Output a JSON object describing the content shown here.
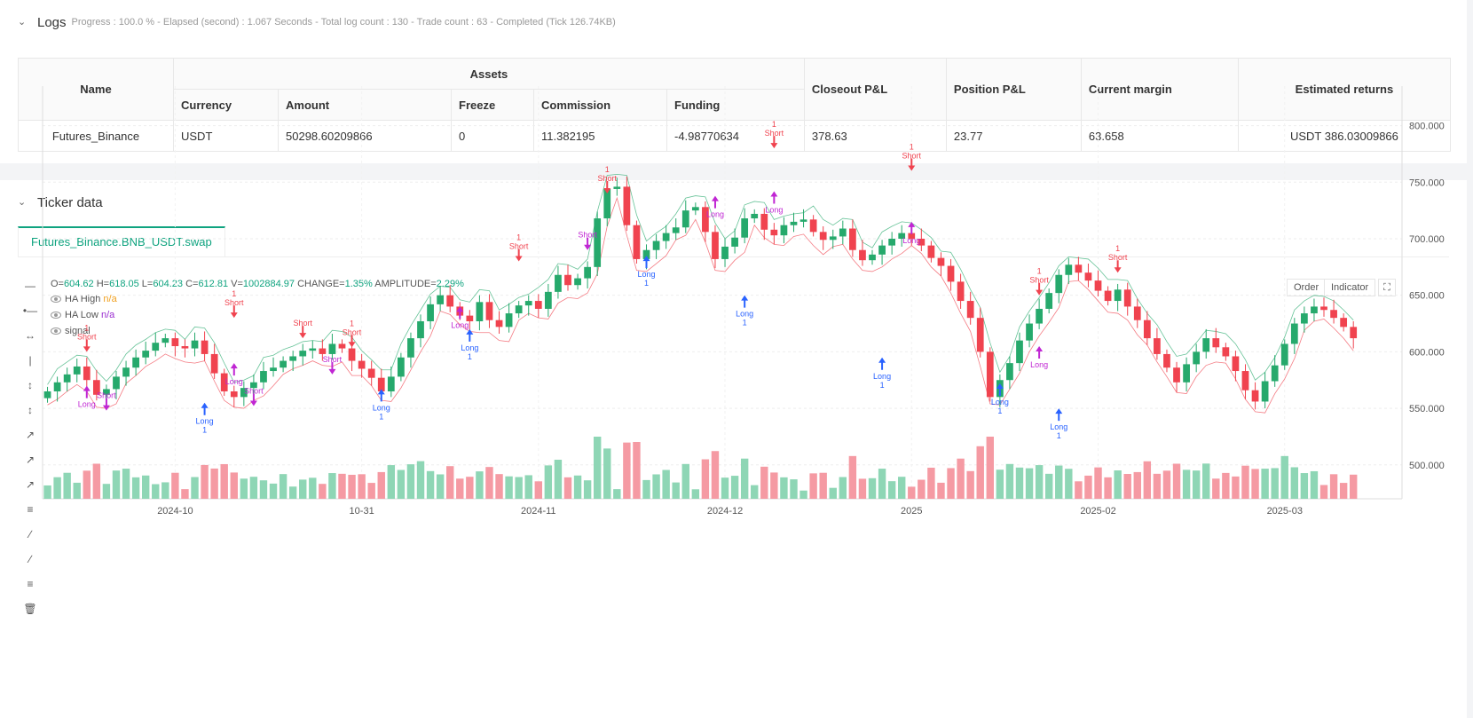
{
  "logs": {
    "title": "Logs",
    "meta": "Progress : 100.0 % - Elapsed (second) : 1.067   Seconds - Total log count : 130 - Trade count : 63 - Completed (Tick 126.74KB)",
    "table": {
      "name_header": "Name",
      "assets_header": "Assets",
      "sub_headers": [
        "Currency",
        "Amount",
        "Freeze",
        "Commission",
        "Funding"
      ],
      "right_headers": [
        "Closeout P&L",
        "Position P&L",
        "Current margin",
        "Estimated returns"
      ],
      "row": {
        "name": "Futures_Binance",
        "currency": "USDT",
        "amount": "50298.60209866",
        "freeze": "0",
        "commission": "11.382195",
        "funding": "-4.98770634",
        "closeout": "378.63",
        "position": "23.77",
        "margin": "63.658",
        "returns": "USDT 386.03009866"
      }
    }
  },
  "ticker": {
    "title": "Ticker data",
    "tab": "Futures_Binance.BNB_USDT.swap",
    "ohlc": {
      "o_label": "O=",
      "o": "604.62",
      "h_label": "H=",
      "h": "618.05",
      "l_label": "L=",
      "l": "604.23",
      "c_label": "C=",
      "c": "612.81",
      "v_label": "V=",
      "v": "1002884.97",
      "chg_label": "CHANGE=",
      "chg": "1.35%",
      "amp_label": "AMPLITUDE=",
      "amp": "2.29%"
    },
    "legend": [
      {
        "name": "HA High",
        "value": "n/a",
        "color": "#f0a020"
      },
      {
        "name": "HA Low",
        "value": "n/a",
        "color": "#9b30d0"
      },
      {
        "name": "signal",
        "value": "",
        "color": "#555555"
      }
    ],
    "buttons": {
      "order": "Order",
      "indicator": "Indicator"
    },
    "colors": {
      "up": "#26a96c",
      "down": "#f0434f",
      "long": "#2962ff",
      "short": "#f0434f",
      "magenta": "#c026d3"
    }
  },
  "chart_data": {
    "type": "candlestick",
    "y_ticks": [
      "800.000",
      "750.000",
      "700.000",
      "650.000",
      "600.000",
      "550.000",
      "500.000"
    ],
    "y_tick_values": [
      800,
      750,
      700,
      650,
      600,
      550,
      500
    ],
    "ylim": [
      470,
      835
    ],
    "x_labels": [
      "2024-10",
      "10-31",
      "2024-11",
      "2024-12",
      "2025",
      "2025-02",
      "2025-03"
    ],
    "x_label_index": [
      13,
      32,
      50,
      69,
      88,
      107,
      126
    ],
    "closes": [
      565,
      573,
      580,
      587,
      575,
      562,
      567,
      578,
      586,
      595,
      601,
      608,
      612,
      605,
      603,
      610,
      598,
      581,
      565,
      560,
      568,
      573,
      583,
      586,
      592,
      596,
      601,
      603,
      598,
      607,
      603,
      592,
      585,
      577,
      565,
      578,
      595,
      612,
      627,
      642,
      650,
      640,
      632,
      627,
      644,
      628,
      622,
      634,
      641,
      645,
      638,
      653,
      668,
      659,
      665,
      675,
      718,
      744,
      746,
      712,
      682,
      690,
      698,
      705,
      710,
      725,
      728,
      706,
      682,
      693,
      701,
      718,
      722,
      708,
      703,
      712,
      715,
      717,
      706,
      699,
      702,
      709,
      690,
      681,
      686,
      694,
      700,
      705,
      700,
      694,
      683,
      676,
      662,
      645,
      630,
      600,
      560,
      575,
      590,
      610,
      625,
      638,
      652,
      668,
      677,
      670,
      663,
      654,
      645,
      655,
      640,
      628,
      612,
      598,
      586,
      573,
      589,
      600,
      612,
      604,
      596,
      583,
      566,
      556,
      574,
      588,
      607,
      625,
      634,
      640,
      637,
      630,
      622,
      612
    ],
    "markers": [
      {
        "type": "short",
        "i": 4,
        "text": "Short",
        "num": "1",
        "y": 600
      },
      {
        "type": "long-m",
        "i": 4,
        "text": "Long",
        "y": 570
      },
      {
        "type": "short-m",
        "i": 6,
        "text": "Short",
        "y": 548
      },
      {
        "type": "long",
        "i": 16,
        "text": "Long",
        "num": "1",
        "y": 555
      },
      {
        "type": "short",
        "i": 19,
        "text": "Short",
        "num": "1",
        "y": 630
      },
      {
        "type": "long-m",
        "i": 19,
        "text": "Long",
        "y": 590
      },
      {
        "type": "short-m",
        "i": 21,
        "text": "Short",
        "y": 552
      },
      {
        "type": "short",
        "i": 26,
        "text": "Short",
        "num": "",
        "y": 612
      },
      {
        "type": "short",
        "i": 31,
        "text": "Short",
        "num": "1",
        "y": 604
      },
      {
        "type": "short-m",
        "i": 29,
        "text": "Short",
        "y": 580
      },
      {
        "type": "long",
        "i": 34,
        "text": "Long",
        "num": "1",
        "y": 567
      },
      {
        "type": "long-m",
        "i": 42,
        "text": "Long",
        "y": 640
      },
      {
        "type": "long",
        "i": 43,
        "text": "Long",
        "num": "1",
        "y": 620
      },
      {
        "type": "short",
        "i": 48,
        "text": "Short",
        "num": "1",
        "y": 680
      },
      {
        "type": "short",
        "i": 57,
        "text": "Short",
        "num": "1",
        "y": 740
      },
      {
        "type": "short-m",
        "i": 55,
        "text": "Short",
        "y": 690
      },
      {
        "type": "long",
        "i": 61,
        "text": "Long",
        "num": "1",
        "y": 685
      },
      {
        "type": "long-m",
        "i": 68,
        "text": "Long",
        "y": 738
      },
      {
        "type": "short",
        "i": 74,
        "text": "Short",
        "num": "1",
        "y": 780
      },
      {
        "type": "long-m",
        "i": 74,
        "text": "Long",
        "y": 742
      },
      {
        "type": "long",
        "i": 71,
        "text": "Long",
        "num": "1",
        "y": 650
      },
      {
        "type": "short",
        "i": 88,
        "text": "Short",
        "num": "1",
        "y": 760
      },
      {
        "type": "long-m",
        "i": 88,
        "text": "Long",
        "y": 715
      },
      {
        "type": "long",
        "i": 85,
        "text": "Long",
        "num": "1",
        "y": 595
      },
      {
        "type": "long",
        "i": 97,
        "text": "Long",
        "num": "1",
        "y": 572
      },
      {
        "type": "short",
        "i": 101,
        "text": "Short",
        "num": "1",
        "y": 650
      },
      {
        "type": "long-m",
        "i": 101,
        "text": "Long",
        "y": 605
      },
      {
        "type": "long",
        "i": 103,
        "text": "Long",
        "num": "1",
        "y": 550
      },
      {
        "type": "short",
        "i": 109,
        "text": "Short",
        "num": "1",
        "y": 670
      }
    ]
  }
}
